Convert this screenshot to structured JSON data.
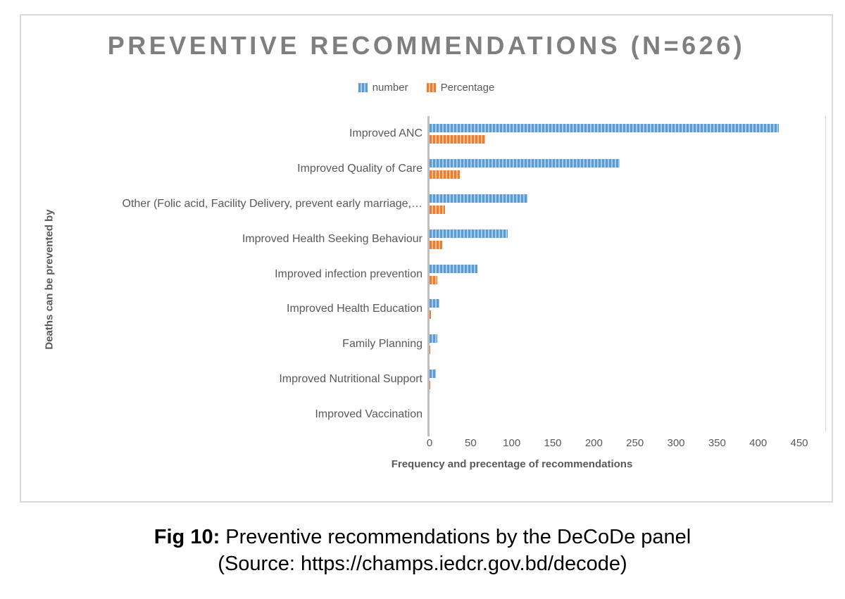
{
  "figure": {
    "border_color": "#D9D9D9",
    "axis_line_color": "#BFBFBF",
    "title_color": "#7F7F7F",
    "text_color": "#595959"
  },
  "chart_data": {
    "type": "bar",
    "orientation": "horizontal",
    "title": "PREVENTIVE RECOMMENDATIONS (N=626)",
    "categories": [
      "Improved ANC",
      "Improved Quality of Care",
      "Other (Folic acid, Facility Delivery, prevent early marriage,…",
      "Improved Health Seeking Behaviour",
      "Improved infection prevention",
      "Improved Health Education",
      "Family Planning",
      "Improved Nutritional Support",
      "Improved Vaccination"
    ],
    "series": [
      {
        "name": "number",
        "color": "#5B9BD5",
        "stripe": "#A9CCE9",
        "values": [
          425,
          231,
          119,
          95,
          58,
          12,
          9,
          8,
          0
        ]
      },
      {
        "name": "Percentage",
        "color": "#ED7D31",
        "stripe": "#F5BE8F",
        "values": [
          68,
          37,
          19,
          15,
          9,
          2,
          1,
          1,
          0
        ]
      }
    ],
    "xlabel": "Frequency and precentage of recommendations",
    "ylabel": "Deaths can be prevented by",
    "xlim": [
      0,
      450
    ],
    "xticks": [
      0,
      50,
      100,
      150,
      200,
      250,
      300,
      350,
      400,
      450
    ],
    "grid": false,
    "legend_position": "top"
  },
  "caption": {
    "fig_label": "Fig 10:",
    "fig_text": " Preventive recommendations by the DeCoDe panel",
    "source": "(Source: https://champs.iedcr.gov.bd/decode)"
  }
}
